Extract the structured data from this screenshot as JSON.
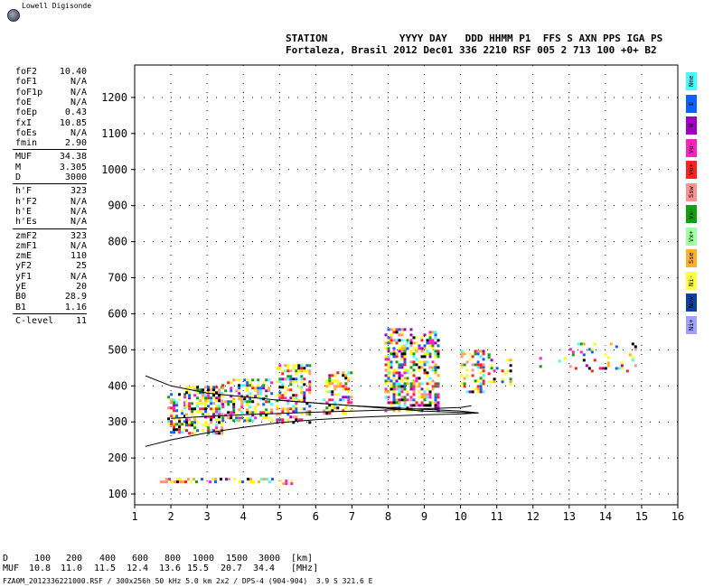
{
  "app": {
    "title": "Lowell Digisonde"
  },
  "header": {
    "line1": "STATION            YYYY DAY   DDD HHMM P1  FFS S AXN PPS IGA PS",
    "line2": "Fortaleza, Brasil 2012 Dec01 336 2210 RSF 005 2 713 100 +0+ B2"
  },
  "params_a": [
    {
      "label": "foF2",
      "value": "10.40"
    },
    {
      "label": "foF1",
      "value": "N/A"
    },
    {
      "label": "foF1p",
      "value": "N/A"
    },
    {
      "label": "foE",
      "value": "N/A"
    },
    {
      "label": "foEp",
      "value": "0.43"
    },
    {
      "label": "fxI",
      "value": "10.85"
    },
    {
      "label": "foEs",
      "value": "N/A"
    },
    {
      "label": "fmin",
      "value": "2.90"
    }
  ],
  "params_b": [
    {
      "label": "MUF",
      "value": "34.38"
    },
    {
      "label": "M",
      "value": "3.305"
    },
    {
      "label": "D",
      "value": "3000"
    }
  ],
  "params_c": [
    {
      "label": "h'F",
      "value": "323"
    },
    {
      "label": "h'F2",
      "value": "N/A"
    },
    {
      "label": "h'E",
      "value": "N/A"
    },
    {
      "label": "h'Es",
      "value": "N/A"
    }
  ],
  "params_d": [
    {
      "label": "zmF2",
      "value": "323"
    },
    {
      "label": "zmF1",
      "value": "N/A"
    },
    {
      "label": "zmE",
      "value": "110"
    },
    {
      "label": "yF2",
      "value": "25"
    },
    {
      "label": "yF1",
      "value": "N/A"
    },
    {
      "label": "yE",
      "value": "20"
    },
    {
      "label": "B0",
      "value": "28.9"
    },
    {
      "label": "B1",
      "value": "1.16"
    }
  ],
  "params_e": [
    {
      "label": "C-level",
      "value": "11"
    }
  ],
  "legend": [
    {
      "label": "Nne",
      "color": "#40ffff"
    },
    {
      "label": "E",
      "color": "#1060ff"
    },
    {
      "label": "W",
      "color": "#a000c0"
    },
    {
      "label": "Vo-",
      "color": "#ff20c0"
    },
    {
      "label": "Vo+",
      "color": "#ff2020"
    },
    {
      "label": "Ssw",
      "color": "#ff9090"
    },
    {
      "label": "Vx-",
      "color": "#10a010"
    },
    {
      "label": "Vx+",
      "color": "#a0ffa0"
    },
    {
      "label": "Sse",
      "color": "#ffb020"
    },
    {
      "label": "Ni-",
      "color": "#ffff40"
    },
    {
      "label": "Nnw",
      "color": "#1040a0"
    },
    {
      "label": "Ni+",
      "color": "#a0a0ff"
    }
  ],
  "muf_table": {
    "d_label": "D",
    "d_values": [
      "100",
      "200",
      "400",
      "600",
      "800",
      "1000",
      "1500",
      "3000"
    ],
    "d_unit": "[km]",
    "muf_label": "MUF",
    "muf_values": [
      "10.8",
      "11.0",
      "11.5",
      "12.4",
      "13.6",
      "15.5",
      "20.7",
      "34.4"
    ],
    "muf_unit": "[MHz]"
  },
  "footer": "FZA0M_2012336221000.RSF / 300x256h 50 kHz 5.0 km 2x2 / DPS-4 (904-904)  3.9 S 321.6 E",
  "chart_data": {
    "type": "scatter",
    "x_ticks": [
      1,
      2,
      3,
      4,
      5,
      6,
      7,
      8,
      9,
      10,
      11,
      12,
      13,
      14,
      15,
      16
    ],
    "y_ticks": [
      100,
      200,
      300,
      400,
      500,
      600,
      700,
      800,
      900,
      1000,
      1100,
      1200
    ],
    "xlim": [
      1,
      16
    ],
    "ylim": [
      70,
      1290
    ],
    "grid": true,
    "clusters": [
      {
        "x": [
          1.9,
          2.4
        ],
        "y": [
          270,
          380
        ],
        "density": 0.55
      },
      {
        "x": [
          2.4,
          3.4
        ],
        "y": [
          265,
          400
        ],
        "density": 0.6
      },
      {
        "x": [
          3.4,
          4.8
        ],
        "y": [
          300,
          420
        ],
        "density": 0.5
      },
      {
        "x": [
          4.9,
          5.8
        ],
        "y": [
          300,
          460
        ],
        "density": 0.5
      },
      {
        "x": [
          6.2,
          7.0
        ],
        "y": [
          320,
          440
        ],
        "density": 0.4
      },
      {
        "x": [
          7.9,
          8.5
        ],
        "y": [
          330,
          560
        ],
        "density": 0.6
      },
      {
        "x": [
          8.6,
          9.4
        ],
        "y": [
          330,
          560
        ],
        "density": 0.55
      },
      {
        "x": [
          10.0,
          10.6
        ],
        "y": [
          380,
          500
        ],
        "density": 0.5
      },
      {
        "x": [
          10.6,
          11.4
        ],
        "y": [
          400,
          490
        ],
        "density": 0.25
      },
      {
        "x": [
          1.7,
          4.8
        ],
        "y": [
          130,
          145
        ],
        "density": 0.4
      },
      {
        "x": [
          5.0,
          5.4
        ],
        "y": [
          130,
          140
        ],
        "density": 0.3
      },
      {
        "x": [
          12.1,
          13.0
        ],
        "y": [
          450,
          480
        ],
        "density": 0.1
      },
      {
        "x": [
          13.0,
          14.8
        ],
        "y": [
          440,
          520
        ],
        "density": 0.15
      }
    ],
    "cluster_colors": [
      "#ffff00",
      "#ffff00",
      "#ffff40",
      "#ffb020",
      "#ff20c0",
      "#ff2020",
      "#1060ff",
      "#40ffff",
      "#10a010",
      "#a000c0",
      "#000000",
      "#ff9090",
      "#ffffff"
    ],
    "upper_curve": {
      "x": [
        1.3,
        2,
        3,
        4,
        5,
        6,
        7,
        8,
        9,
        10,
        10.5
      ],
      "y": [
        428,
        400,
        380,
        370,
        360,
        352,
        345,
        340,
        335,
        330,
        325
      ]
    },
    "lower_curve": {
      "x": [
        1.3,
        2,
        3,
        4,
        5,
        6,
        7,
        8,
        9,
        10,
        10.5
      ],
      "y": [
        232,
        250,
        270,
        285,
        298,
        306,
        312,
        316,
        320,
        322,
        325
      ]
    },
    "mid_curve_1": {
      "x": [
        2,
        4,
        6,
        8,
        10,
        10.3
      ],
      "y": [
        310,
        320,
        327,
        333,
        340,
        345
      ]
    },
    "mid_curve_2": {
      "x": [
        5,
        7,
        9,
        10.3
      ],
      "y": [
        360,
        345,
        330,
        325
      ]
    }
  }
}
